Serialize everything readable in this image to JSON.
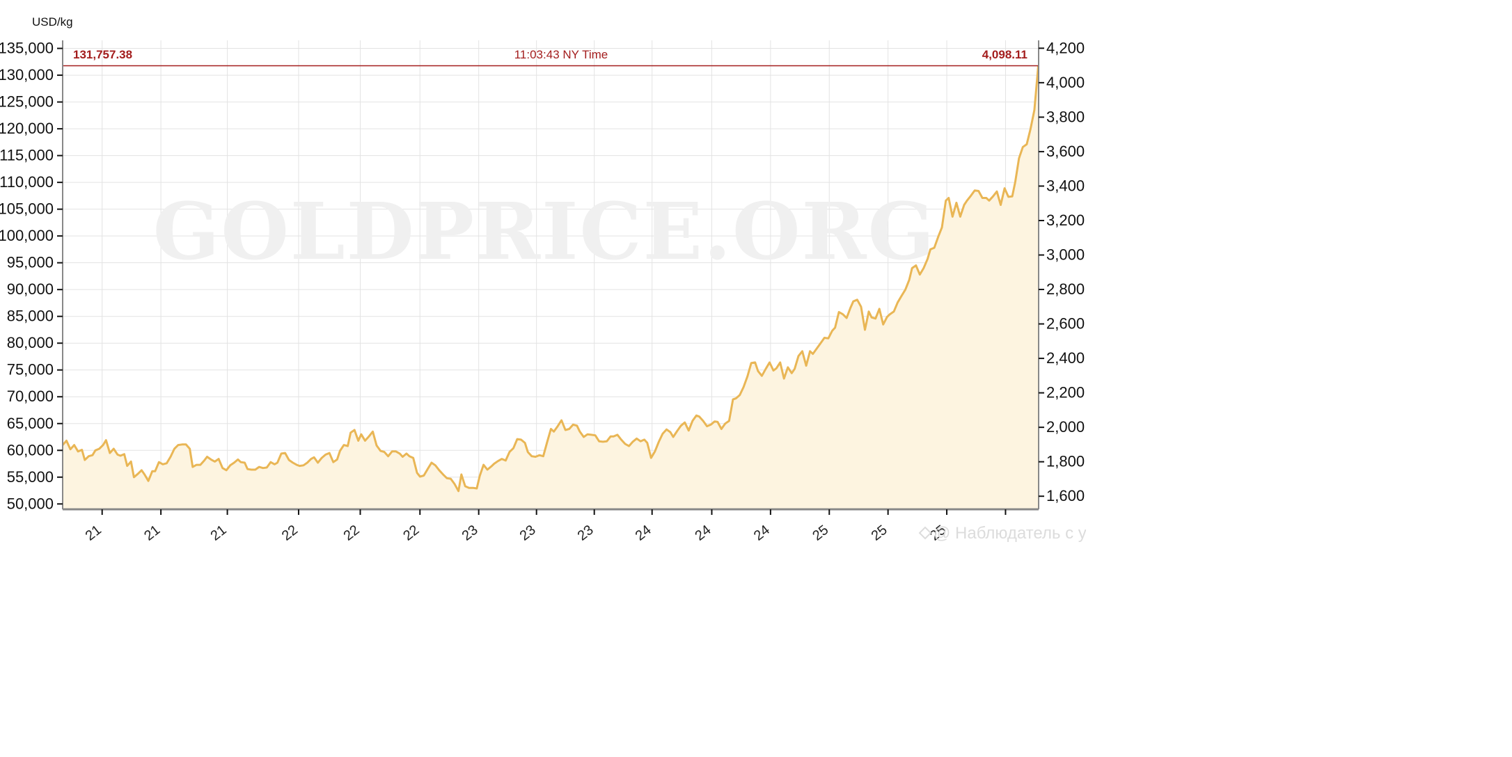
{
  "chart_data": {
    "type": "area",
    "left_unit_label": "USD/kg",
    "watermark": "GOLDPRICE.ORG",
    "attribution": "@ Наблюдатель с улыбко...",
    "current": {
      "left_value": "131,757.38",
      "time": "11:03:43 NY Time",
      "right_value": "4,098.11",
      "line_value": 131757.38
    },
    "y_left": {
      "min": 49000,
      "max": 136500,
      "ticks": [
        50000,
        55000,
        60000,
        65000,
        70000,
        75000,
        80000,
        85000,
        90000,
        95000,
        100000,
        105000,
        110000,
        115000,
        120000,
        125000,
        130000,
        135000
      ],
      "tick_labels": [
        "50,000",
        "55,000",
        "60,000",
        "65,000",
        "70,000",
        "75,000",
        "80,000",
        "85,000",
        "90,000",
        "95,000",
        "100,000",
        "105,000",
        "110,000",
        "115,000",
        "120,000",
        "125,000",
        "130,000",
        "135,000"
      ]
    },
    "y_right": {
      "ticks": [
        1600,
        1800,
        2000,
        2200,
        2400,
        2600,
        2800,
        3000,
        3200,
        3400,
        3600,
        3800,
        4000,
        4200
      ],
      "tick_labels": [
        "1,600",
        "1,800",
        "2,000",
        "2,200",
        "2,400",
        "2,600",
        "2,800",
        "3,000",
        "3,200",
        "3,400",
        "3,600",
        "3,800",
        "4,000",
        "4,200"
      ]
    },
    "x": {
      "min": 0,
      "max": 100,
      "ticks": [
        4.1,
        10.2,
        17.1,
        24.5,
        30.9,
        37.1,
        43.2,
        49.2,
        55.2,
        61.2,
        67.4,
        73.5,
        79.6,
        85.7,
        91.8,
        97.9
      ],
      "tick_labels": [
        "21",
        "21",
        "21",
        "22",
        "22",
        "22",
        "23",
        "23",
        "23",
        "24",
        "24",
        "24",
        "25",
        "25",
        "25",
        ""
      ]
    },
    "colors": {
      "line": "#e9b655",
      "fill": "#fdf4e0",
      "current_line": "#a31d1d",
      "grid": "#e3e3e3",
      "axis": "#888888"
    },
    "series": [
      {
        "points": [
          [
            0.0,
            61000
          ],
          [
            0.4,
            61800
          ],
          [
            0.8,
            60200
          ],
          [
            1.2,
            61000
          ],
          [
            1.6,
            59800
          ],
          [
            2.0,
            60100
          ],
          [
            2.3,
            58200
          ],
          [
            2.7,
            58900
          ],
          [
            3.1,
            59100
          ],
          [
            3.4,
            60000
          ],
          [
            3.8,
            60300
          ],
          [
            4.2,
            61000
          ],
          [
            4.5,
            61900
          ],
          [
            4.9,
            59500
          ],
          [
            5.3,
            60300
          ],
          [
            5.7,
            59200
          ],
          [
            6.0,
            59000
          ],
          [
            6.4,
            59300
          ],
          [
            6.7,
            57100
          ],
          [
            7.1,
            57900
          ],
          [
            7.4,
            55000
          ],
          [
            7.8,
            55600
          ],
          [
            8.2,
            56300
          ],
          [
            8.5,
            55500
          ],
          [
            8.9,
            54300
          ],
          [
            9.3,
            56100
          ],
          [
            9.6,
            56100
          ],
          [
            10.0,
            57800
          ],
          [
            10.4,
            57400
          ],
          [
            10.8,
            57600
          ],
          [
            11.2,
            58800
          ],
          [
            11.6,
            60300
          ],
          [
            12.0,
            61000
          ],
          [
            12.4,
            61100
          ],
          [
            12.8,
            61100
          ],
          [
            13.2,
            60300
          ],
          [
            13.5,
            56900
          ],
          [
            13.9,
            57300
          ],
          [
            14.3,
            57300
          ],
          [
            14.7,
            58100
          ],
          [
            15.0,
            58800
          ],
          [
            15.4,
            58300
          ],
          [
            15.8,
            57900
          ],
          [
            16.2,
            58400
          ],
          [
            16.6,
            56700
          ],
          [
            17.0,
            56300
          ],
          [
            17.4,
            57200
          ],
          [
            17.8,
            57700
          ],
          [
            18.2,
            58300
          ],
          [
            18.5,
            57800
          ],
          [
            18.9,
            57700
          ],
          [
            19.2,
            56500
          ],
          [
            19.6,
            56400
          ],
          [
            20.0,
            56400
          ],
          [
            20.4,
            56900
          ],
          [
            20.8,
            56700
          ],
          [
            21.2,
            56800
          ],
          [
            21.6,
            57800
          ],
          [
            22.0,
            57400
          ],
          [
            22.3,
            57700
          ],
          [
            22.7,
            59400
          ],
          [
            23.1,
            59500
          ],
          [
            23.5,
            58200
          ],
          [
            23.9,
            57700
          ],
          [
            24.3,
            57300
          ],
          [
            24.6,
            57100
          ],
          [
            25.0,
            57200
          ],
          [
            25.4,
            57700
          ],
          [
            25.8,
            58400
          ],
          [
            26.1,
            58700
          ],
          [
            26.5,
            57700
          ],
          [
            26.9,
            58600
          ],
          [
            27.3,
            59200
          ],
          [
            27.7,
            59500
          ],
          [
            28.1,
            57800
          ],
          [
            28.5,
            58300
          ],
          [
            28.8,
            59900
          ],
          [
            29.2,
            61000
          ],
          [
            29.6,
            60800
          ],
          [
            29.9,
            63300
          ],
          [
            30.3,
            63800
          ],
          [
            30.7,
            61800
          ],
          [
            31.0,
            63000
          ],
          [
            31.4,
            61800
          ],
          [
            31.8,
            62600
          ],
          [
            32.2,
            63500
          ],
          [
            32.6,
            60900
          ],
          [
            33.0,
            59900
          ],
          [
            33.4,
            59700
          ],
          [
            33.8,
            58900
          ],
          [
            34.2,
            59800
          ],
          [
            34.6,
            59800
          ],
          [
            35.0,
            59400
          ],
          [
            35.3,
            58800
          ],
          [
            35.7,
            59400
          ],
          [
            36.0,
            58900
          ],
          [
            36.4,
            58600
          ],
          [
            36.8,
            55800
          ],
          [
            37.1,
            55100
          ],
          [
            37.5,
            55300
          ],
          [
            37.9,
            56500
          ],
          [
            38.3,
            57700
          ],
          [
            38.7,
            57200
          ],
          [
            39.1,
            56300
          ],
          [
            39.5,
            55500
          ],
          [
            39.9,
            54800
          ],
          [
            40.3,
            54700
          ],
          [
            40.7,
            53700
          ],
          [
            41.1,
            52400
          ],
          [
            41.4,
            55500
          ],
          [
            41.8,
            53300
          ],
          [
            42.2,
            53000
          ],
          [
            42.6,
            53000
          ],
          [
            43.0,
            52900
          ],
          [
            43.3,
            55200
          ],
          [
            43.7,
            57300
          ],
          [
            44.1,
            56400
          ],
          [
            44.5,
            57000
          ],
          [
            44.8,
            57500
          ],
          [
            45.2,
            58000
          ],
          [
            45.6,
            58400
          ],
          [
            46.0,
            58100
          ],
          [
            46.4,
            59700
          ],
          [
            46.8,
            60400
          ],
          [
            47.2,
            62100
          ],
          [
            47.6,
            62000
          ],
          [
            48.0,
            61400
          ],
          [
            48.3,
            59700
          ],
          [
            48.7,
            58900
          ],
          [
            49.1,
            58800
          ],
          [
            49.5,
            59100
          ],
          [
            49.9,
            58900
          ],
          [
            50.3,
            61500
          ],
          [
            50.7,
            64000
          ],
          [
            51.0,
            63500
          ],
          [
            51.4,
            64500
          ],
          [
            51.8,
            65600
          ],
          [
            52.2,
            63800
          ],
          [
            52.6,
            64000
          ],
          [
            53.0,
            64800
          ],
          [
            53.4,
            64600
          ],
          [
            53.7,
            63500
          ],
          [
            54.1,
            62500
          ],
          [
            54.5,
            63000
          ],
          [
            54.9,
            62900
          ],
          [
            55.3,
            62800
          ],
          [
            55.7,
            61700
          ],
          [
            56.1,
            61600
          ],
          [
            56.5,
            61700
          ],
          [
            56.9,
            62600
          ],
          [
            57.2,
            62600
          ],
          [
            57.6,
            62900
          ],
          [
            58.0,
            62000
          ],
          [
            58.4,
            61200
          ],
          [
            58.8,
            60800
          ],
          [
            59.2,
            61600
          ],
          [
            59.6,
            62200
          ],
          [
            60.0,
            61700
          ],
          [
            60.4,
            62000
          ],
          [
            60.7,
            61400
          ],
          [
            61.1,
            58600
          ],
          [
            61.5,
            59800
          ],
          [
            61.9,
            61600
          ],
          [
            62.3,
            63100
          ],
          [
            62.7,
            63900
          ],
          [
            63.1,
            63400
          ],
          [
            63.4,
            62500
          ],
          [
            63.8,
            63600
          ],
          [
            64.2,
            64600
          ],
          [
            64.6,
            65200
          ],
          [
            65.0,
            63700
          ],
          [
            65.4,
            65500
          ],
          [
            65.8,
            66500
          ],
          [
            66.1,
            66300
          ],
          [
            66.5,
            65500
          ],
          [
            66.9,
            64500
          ],
          [
            67.3,
            64800
          ],
          [
            67.7,
            65400
          ],
          [
            68.0,
            65300
          ],
          [
            68.4,
            64000
          ],
          [
            68.8,
            65000
          ],
          [
            69.2,
            65500
          ],
          [
            69.6,
            69500
          ],
          [
            69.9,
            69700
          ],
          [
            70.3,
            70300
          ],
          [
            70.7,
            71800
          ],
          [
            71.1,
            73800
          ],
          [
            71.5,
            76300
          ],
          [
            71.9,
            76400
          ],
          [
            72.2,
            74800
          ],
          [
            72.6,
            73900
          ],
          [
            73.0,
            75200
          ],
          [
            73.4,
            76400
          ],
          [
            73.8,
            74900
          ],
          [
            74.1,
            75300
          ],
          [
            74.5,
            76400
          ],
          [
            74.9,
            73400
          ],
          [
            75.3,
            75500
          ],
          [
            75.7,
            74400
          ],
          [
            76.0,
            75200
          ],
          [
            76.4,
            77600
          ],
          [
            76.8,
            78500
          ],
          [
            77.2,
            75800
          ],
          [
            77.6,
            78500
          ],
          [
            77.9,
            78000
          ],
          [
            78.3,
            79000
          ],
          [
            78.7,
            80000
          ],
          [
            79.1,
            81000
          ],
          [
            79.5,
            80900
          ],
          [
            79.9,
            82300
          ],
          [
            80.2,
            82900
          ],
          [
            80.6,
            85800
          ],
          [
            81.0,
            85400
          ],
          [
            81.4,
            84700
          ],
          [
            81.8,
            86600
          ],
          [
            82.1,
            87800
          ],
          [
            82.5,
            88100
          ],
          [
            82.9,
            86800
          ],
          [
            83.3,
            82500
          ],
          [
            83.7,
            85900
          ],
          [
            84.0,
            84800
          ],
          [
            84.4,
            84600
          ],
          [
            84.8,
            86400
          ],
          [
            85.2,
            83500
          ],
          [
            85.6,
            84900
          ],
          [
            85.9,
            85400
          ],
          [
            86.3,
            85900
          ],
          [
            86.7,
            87600
          ],
          [
            87.1,
            88800
          ],
          [
            87.5,
            90000
          ],
          [
            87.9,
            91800
          ],
          [
            88.2,
            94000
          ],
          [
            88.6,
            94500
          ],
          [
            89.0,
            92800
          ],
          [
            89.4,
            94000
          ],
          [
            89.8,
            95700
          ],
          [
            90.1,
            97500
          ],
          [
            90.5,
            97800
          ],
          [
            90.9,
            99800
          ],
          [
            91.3,
            101600
          ],
          [
            91.7,
            106600
          ],
          [
            92.0,
            107100
          ],
          [
            92.4,
            103600
          ],
          [
            92.8,
            106200
          ],
          [
            93.2,
            103600
          ],
          [
            93.6,
            105800
          ],
          [
            93.9,
            106600
          ],
          [
            94.3,
            107500
          ],
          [
            94.7,
            108500
          ],
          [
            95.1,
            108400
          ],
          [
            95.5,
            107100
          ],
          [
            95.9,
            107100
          ],
          [
            96.2,
            106600
          ],
          [
            96.6,
            107400
          ],
          [
            97.0,
            108300
          ],
          [
            97.4,
            105800
          ],
          [
            97.8,
            108900
          ],
          [
            98.2,
            107300
          ],
          [
            98.6,
            107400
          ],
          [
            98.9,
            110000
          ],
          [
            99.3,
            114500
          ],
          [
            99.7,
            116600
          ],
          [
            100.1,
            117100
          ],
          [
            100.5,
            120000
          ],
          [
            100.9,
            123500
          ],
          [
            101.3,
            131757.38
          ]
        ]
      }
    ]
  }
}
